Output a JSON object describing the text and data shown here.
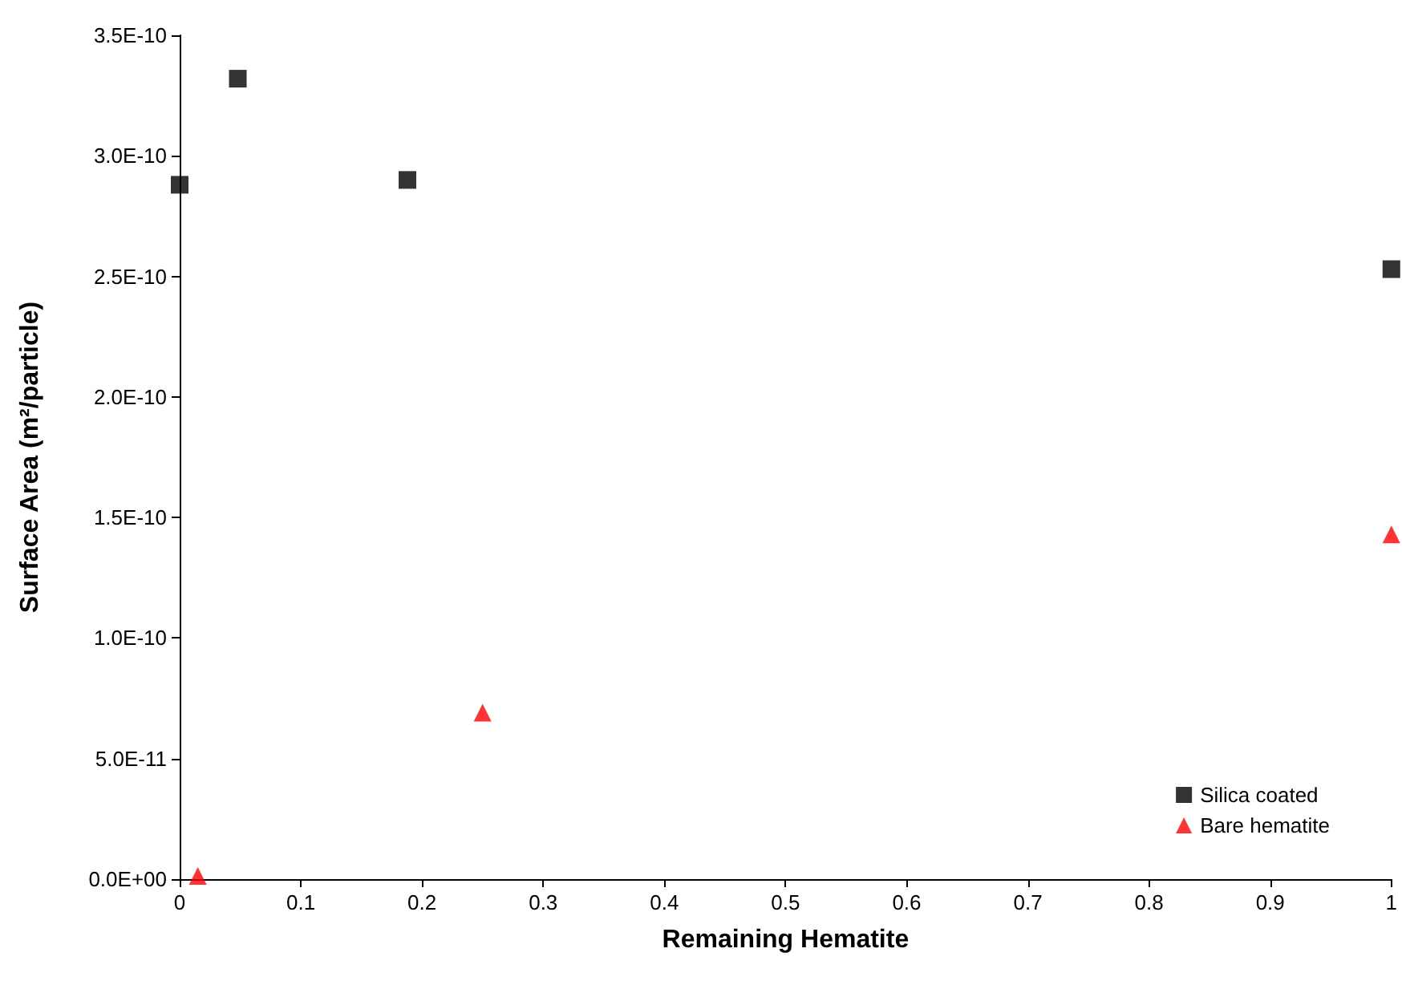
{
  "chart_data": {
    "type": "scatter",
    "xlabel": "Remaining Hematite",
    "ylabel": "Surface Area (m²/particle)",
    "xlim": [
      0,
      1
    ],
    "xticks": [
      0,
      0.1,
      0.2,
      0.3,
      0.4,
      0.5,
      0.6,
      0.7,
      0.8,
      0.9,
      1
    ],
    "ylim": [
      0,
      3.5e-10
    ],
    "yticks": [
      {
        "value": 0,
        "label": "0.0E+00"
      },
      {
        "value": 5e-11,
        "label": "5.0E-11"
      },
      {
        "value": 1e-10,
        "label": "1.0E-10"
      },
      {
        "value": 1.5e-10,
        "label": "1.5E-10"
      },
      {
        "value": 2e-10,
        "label": "2.0E-10"
      },
      {
        "value": 2.5e-10,
        "label": "2.5E-10"
      },
      {
        "value": 3e-10,
        "label": "3.0E-10"
      },
      {
        "value": 3.5e-10,
        "label": "3.5E-10"
      }
    ],
    "grid": false,
    "legend": "bottom right",
    "series": [
      {
        "name": "Silica coated",
        "color": "#000000",
        "marker": "square",
        "x": [
          0,
          0.048,
          0.188,
          1
        ],
        "values": [
          2.88e-10,
          3.32e-10,
          2.9e-10,
          2.53e-10
        ]
      },
      {
        "name": "Bare hematite",
        "color": "#ff0000",
        "marker": "triangle",
        "x": [
          0.015,
          0.25,
          1
        ],
        "values": [
          1.3e-12,
          6.9e-11,
          1.43e-10
        ]
      }
    ]
  }
}
